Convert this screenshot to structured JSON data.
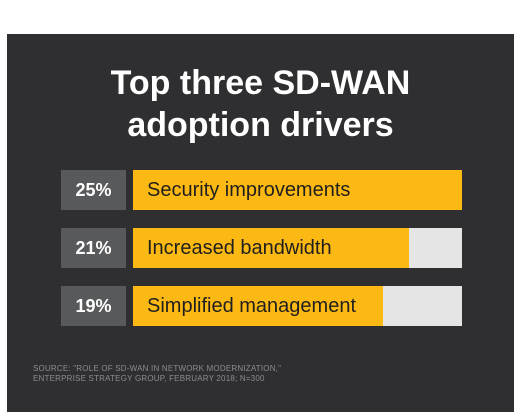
{
  "colors": {
    "panel": "#2f2f31",
    "percent_box": "#58595b",
    "bar_fill": "#fdb913",
    "bar_track": "#e5e5e6",
    "title_text": "#ffffff"
  },
  "chart_data": {
    "type": "bar",
    "orientation": "horizontal",
    "title": [
      "Top three SD-WAN",
      "adoption drivers"
    ],
    "categories": [
      "Security improvements",
      "Increased bandwidth",
      "Simplified management"
    ],
    "values": [
      25,
      21,
      19
    ],
    "value_labels": [
      "25%",
      "21%",
      "19%"
    ],
    "xlim": [
      0,
      25
    ],
    "grid": false,
    "source": [
      "SOURCE: \"ROLE OF SD-WAN IN NETWORK MODERNIZATION,\"",
      "ENTERPRISE STRATEGY GROUP, FEBRUARY 2018; N=300"
    ]
  }
}
